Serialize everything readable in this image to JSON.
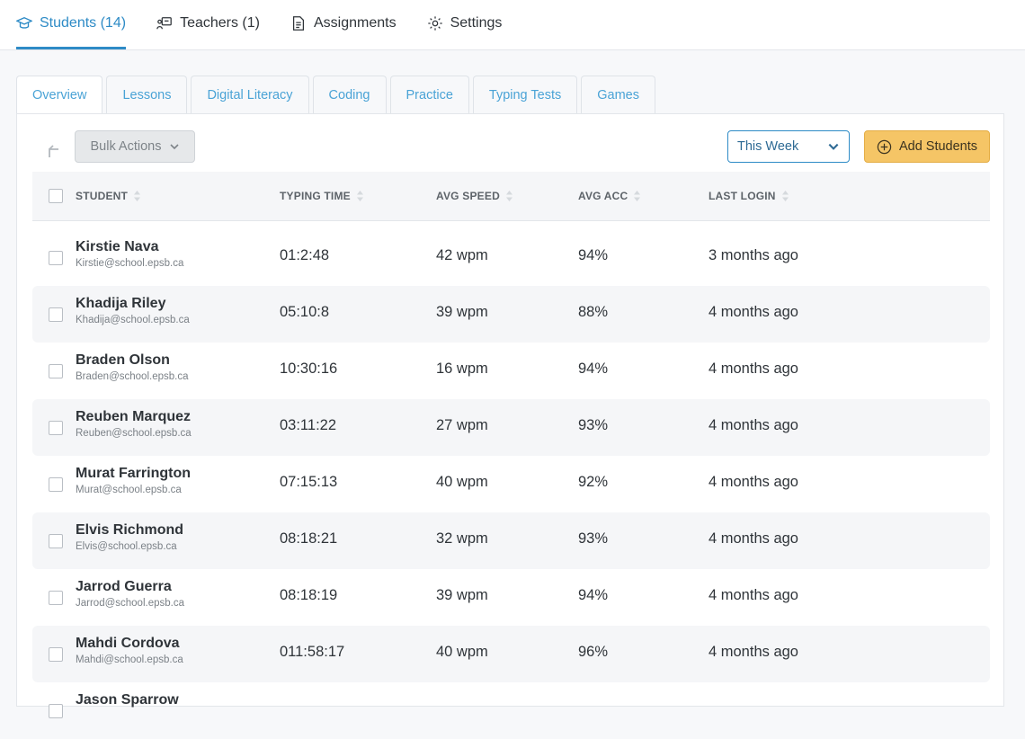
{
  "nav": {
    "students_label": "Students (14)",
    "teachers_label": "Teachers (1)",
    "assignments_label": "Assignments",
    "settings_label": "Settings"
  },
  "tabs": [
    "Overview",
    "Lessons",
    "Digital Literacy",
    "Coding",
    "Practice",
    "Typing Tests",
    "Games"
  ],
  "toolbar": {
    "bulk_actions_label": "Bulk Actions",
    "period_value": "This Week",
    "add_students_label": "Add Students"
  },
  "table": {
    "columns": [
      "STUDENT",
      "TYPING TIME",
      "AVG SPEED",
      "AVG ACC",
      "LAST LOGIN"
    ],
    "rows": [
      {
        "name": "Kirstie Nava",
        "email": "Kirstie@school.epsb.ca",
        "time": "01:2:48",
        "speed": "42 wpm",
        "acc": "94%",
        "login": "3 months ago"
      },
      {
        "name": "Khadija Riley",
        "email": "Khadija@school.epsb.ca",
        "time": "05:10:8",
        "speed": "39 wpm",
        "acc": "88%",
        "login": "4 months ago"
      },
      {
        "name": "Braden Olson",
        "email": "Braden@school.epsb.ca",
        "time": "10:30:16",
        "speed": "16 wpm",
        "acc": "94%",
        "login": "4 months ago"
      },
      {
        "name": "Reuben Marquez",
        "email": "Reuben@school.epsb.ca",
        "time": "03:11:22",
        "speed": "27 wpm",
        "acc": "93%",
        "login": "4 months ago"
      },
      {
        "name": "Murat Farrington",
        "email": "Murat@school.epsb.ca",
        "time": "07:15:13",
        "speed": "40 wpm",
        "acc": "92%",
        "login": "4 months ago"
      },
      {
        "name": "Elvis Richmond",
        "email": "Elvis@school.epsb.ca",
        "time": "08:18:21",
        "speed": "32 wpm",
        "acc": "93%",
        "login": "4 months ago"
      },
      {
        "name": "Jarrod Guerra",
        "email": "Jarrod@school.epsb.ca",
        "time": "08:18:19",
        "speed": "39 wpm",
        "acc": "94%",
        "login": "4 months ago"
      },
      {
        "name": "Mahdi Cordova",
        "email": "Mahdi@school.epsb.ca",
        "time": "011:58:17",
        "speed": "40 wpm",
        "acc": "96%",
        "login": "4 months ago"
      },
      {
        "name": "Jason Sparrow",
        "email": "",
        "time": "",
        "speed": "",
        "acc": "",
        "login": ""
      }
    ]
  },
  "colors": {
    "accent": "#2e8bc6",
    "tab_text": "#4aa3d6",
    "add_button": "#f5c566"
  }
}
